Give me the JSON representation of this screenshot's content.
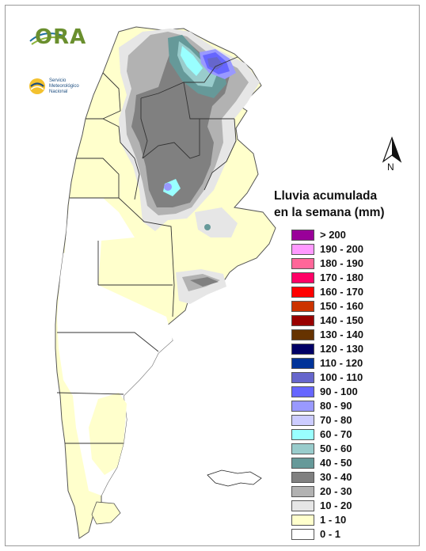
{
  "map": {
    "legend_title_line1": "Lluvia acumulada",
    "legend_title_line2": "en la semana (mm)",
    "north_label": "N",
    "logos": {
      "ora": "ORA",
      "smn_line1": "Servicio",
      "smn_line2": "Meteorológico",
      "smn_line3": "Nacional"
    },
    "legend": [
      {
        "label": "> 200",
        "color": "#990099"
      },
      {
        "label": "190 - 200",
        "color": "#ff99ff"
      },
      {
        "label": "180 - 190",
        "color": "#ff6699"
      },
      {
        "label": "170 - 180",
        "color": "#ff0066"
      },
      {
        "label": "160 - 170",
        "color": "#ff0000"
      },
      {
        "label": "150 - 160",
        "color": "#cc3300"
      },
      {
        "label": "140 - 150",
        "color": "#990000"
      },
      {
        "label": "130 - 140",
        "color": "#663300"
      },
      {
        "label": "120 - 130",
        "color": "#000066"
      },
      {
        "label": "110 - 120",
        "color": "#003399"
      },
      {
        "label": "100 - 110",
        "color": "#6666cc"
      },
      {
        "label": "90 - 100",
        "color": "#6666ff"
      },
      {
        "label": "80 - 90",
        "color": "#9999ff"
      },
      {
        "label": "70 - 80",
        "color": "#ccccff"
      },
      {
        "label": "60 - 70",
        "color": "#99ffff"
      },
      {
        "label": "50 - 60",
        "color": "#99cccc"
      },
      {
        "label": "40 - 50",
        "color": "#669999"
      },
      {
        "label": "30 - 40",
        "color": "#808080"
      },
      {
        "label": "20 - 30",
        "color": "#b2b2b2"
      },
      {
        "label": "10 - 20",
        "color": "#e6e6e6"
      },
      {
        "label": "1 - 10",
        "color": "#ffffcc"
      },
      {
        "label": "0 - 1",
        "color": "#ffffff"
      }
    ]
  }
}
